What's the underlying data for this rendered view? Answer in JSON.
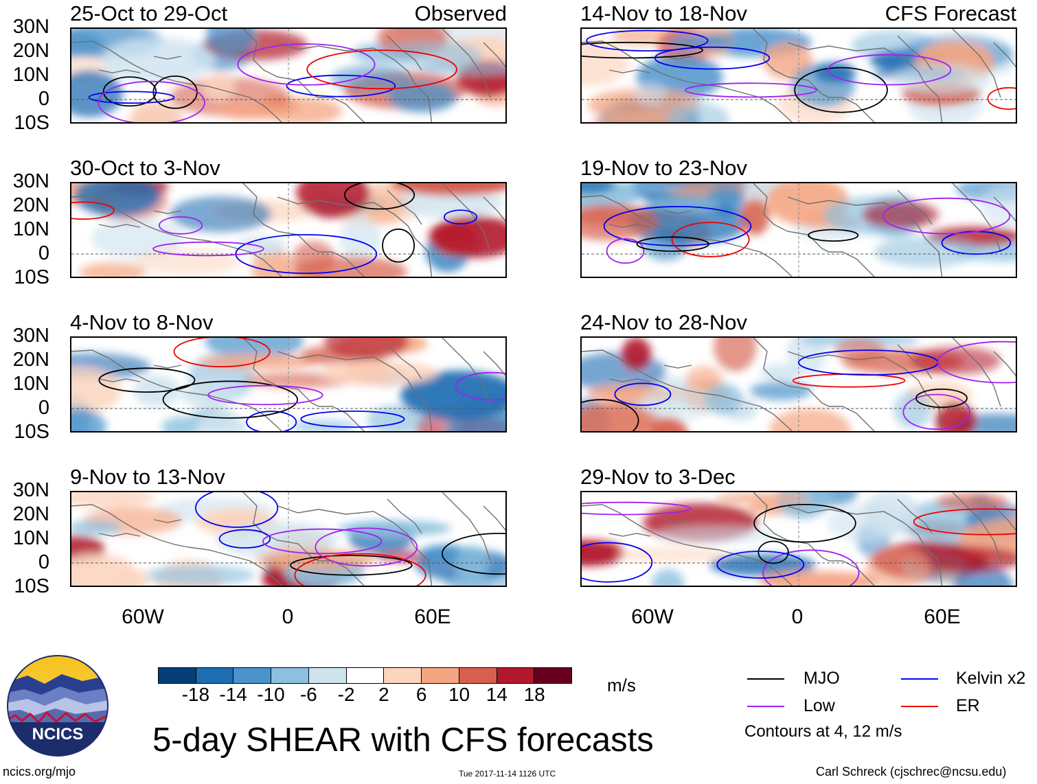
{
  "panels": [
    {
      "title": "25-Oct to 29-Oct",
      "tag": "Observed"
    },
    {
      "title": "30-Oct to 3-Nov",
      "tag": ""
    },
    {
      "title": "4-Nov to 8-Nov",
      "tag": ""
    },
    {
      "title": "9-Nov to 13-Nov",
      "tag": ""
    },
    {
      "title": "14-Nov to 18-Nov",
      "tag": "CFS Forecast"
    },
    {
      "title": "19-Nov to 23-Nov",
      "tag": ""
    },
    {
      "title": "24-Nov to 28-Nov",
      "tag": ""
    },
    {
      "title": "29-Nov to 3-Dec",
      "tag": ""
    }
  ],
  "y_axis_labels": [
    "30N",
    "20N",
    "10N",
    "0",
    "10S"
  ],
  "x_axis_labels": [
    "60W",
    "0",
    "60E"
  ],
  "colorbar": {
    "ticks": [
      "-18",
      "-14",
      "-10",
      "-6",
      "-2",
      "2",
      "6",
      "10",
      "14",
      "18"
    ],
    "colors": [
      "#083e78",
      "#1f6db3",
      "#4a93cb",
      "#8cc0de",
      "#cfe3ef",
      "#ffffff",
      "#fcd5bf",
      "#f4a582",
      "#d6604d",
      "#b2182b",
      "#67001f"
    ],
    "units": "m/s"
  },
  "legend": {
    "items": [
      {
        "label": "MJO",
        "color": "#000000"
      },
      {
        "label": "Kelvin x2",
        "color": "#0000ee"
      },
      {
        "label": "Low",
        "color": "#a020f0"
      },
      {
        "label": "ER",
        "color": "#ee0000"
      }
    ],
    "note": "Contours at 4, 12 m/s"
  },
  "title": "5-day SHEAR with CFS forecasts",
  "logo": {
    "text": "NCICS"
  },
  "footer": {
    "left": "ncics.org/mjo",
    "center": "Tue 2017-11-14 1126 UTC",
    "right": "Carl Schreck (cjschrec@ncsu.edu)"
  }
}
